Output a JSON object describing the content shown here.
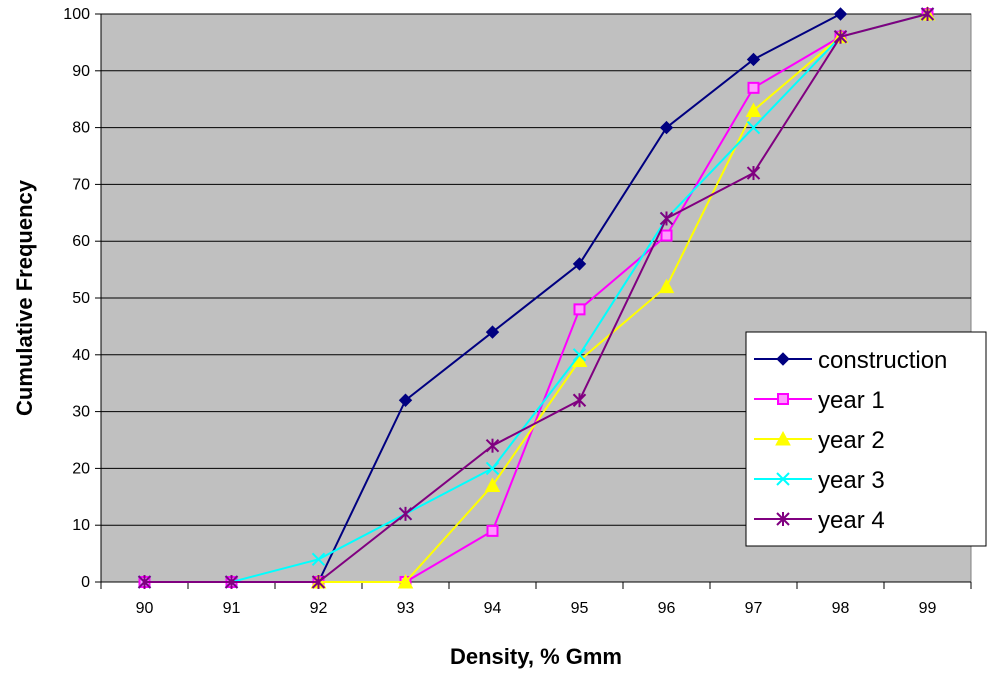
{
  "chart_data": {
    "type": "line",
    "title": "",
    "xlabel": "Density, % Gmm",
    "ylabel": "Cumulative Frequency",
    "categories": [
      "90",
      "91",
      "92",
      "93",
      "94",
      "95",
      "96",
      "97",
      "98",
      "99"
    ],
    "ylim": [
      0,
      100
    ],
    "yticks": [
      "0",
      "10",
      "20",
      "30",
      "40",
      "50",
      "60",
      "70",
      "80",
      "90",
      "100"
    ],
    "grid": "horizontal",
    "plot_background": "#c0c0c0",
    "legend_position": "lower-right",
    "series": [
      {
        "name": "construction",
        "color": "#000080",
        "marker": "diamond",
        "values": [
          null,
          null,
          0,
          32,
          44,
          56,
          80,
          92,
          100,
          null
        ]
      },
      {
        "name": "year 1",
        "color": "#ff00ff",
        "marker": "square",
        "values": [
          0,
          0,
          0,
          0,
          9,
          48,
          61,
          87,
          96,
          100
        ]
      },
      {
        "name": "year 2",
        "color": "#ffff00",
        "marker": "triangle",
        "values": [
          null,
          null,
          0,
          0,
          17,
          39,
          52,
          83,
          96,
          100
        ]
      },
      {
        "name": "year 3",
        "color": "#00ffff",
        "marker": "x",
        "values": [
          0,
          0,
          4,
          12,
          20,
          40,
          64,
          80,
          96,
          100
        ]
      },
      {
        "name": "year 4",
        "color": "#800080",
        "marker": "asterisk",
        "values": [
          0,
          0,
          0,
          12,
          24,
          32,
          64,
          72,
          96,
          100
        ]
      }
    ]
  }
}
